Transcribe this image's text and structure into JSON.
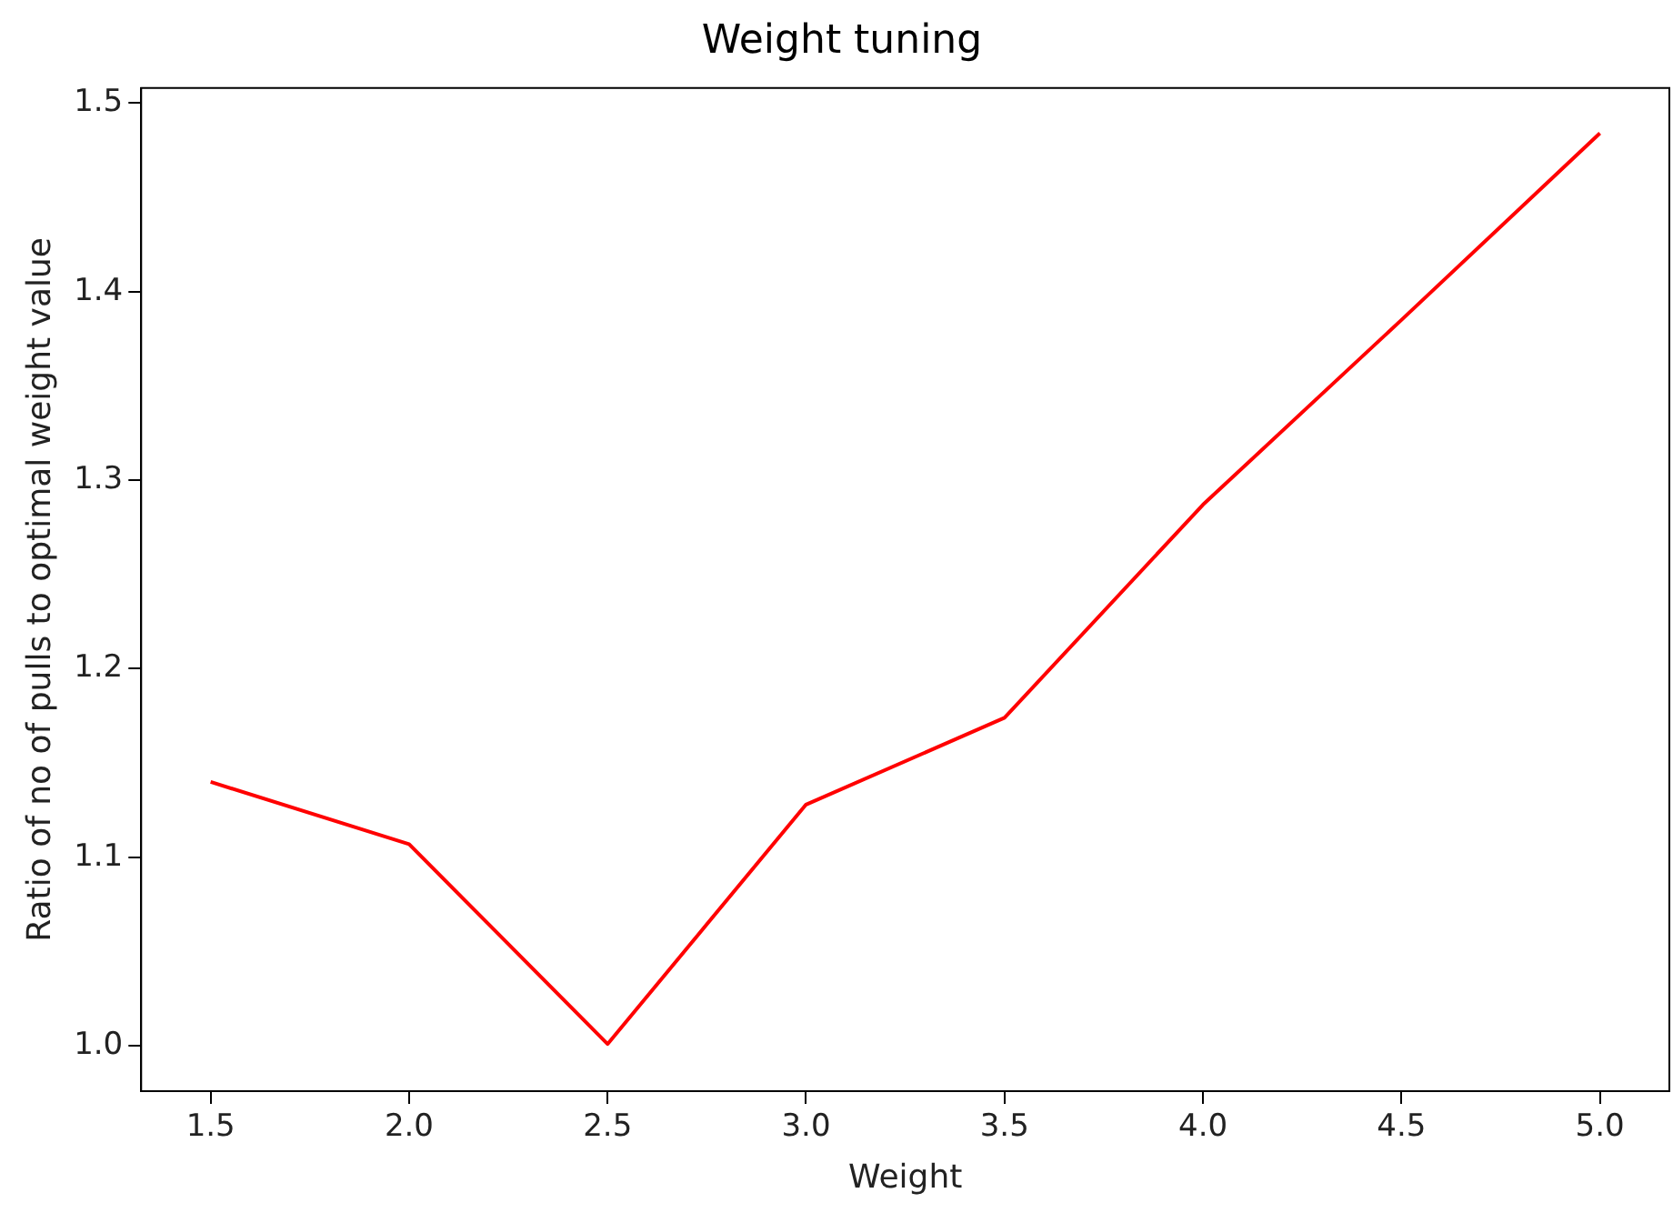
{
  "chart_data": {
    "type": "line",
    "title": "Weight tuning",
    "xlabel": "Weight",
    "ylabel": "Ratio of no of pulls to optimal weight value",
    "x": [
      1.5,
      2.0,
      2.5,
      3.0,
      3.5,
      4.0,
      4.5,
      5.0
    ],
    "series": [
      {
        "color": "#ff0000",
        "values": [
          1.14,
          1.107,
          1.001,
          1.128,
          1.174,
          1.287,
          1.385,
          1.484
        ]
      }
    ],
    "xlim": [
      1.325,
      5.175
    ],
    "ylim": [
      0.976,
      1.508
    ],
    "xticks": [
      {
        "value": 1.5,
        "label": "1.5"
      },
      {
        "value": 2.0,
        "label": "2.0"
      },
      {
        "value": 2.5,
        "label": "2.5"
      },
      {
        "value": 3.0,
        "label": "3.0"
      },
      {
        "value": 3.5,
        "label": "3.5"
      },
      {
        "value": 4.0,
        "label": "4.0"
      },
      {
        "value": 4.5,
        "label": "4.5"
      },
      {
        "value": 5.0,
        "label": "5.0"
      }
    ],
    "yticks": [
      {
        "value": 1.0,
        "label": "1.0"
      },
      {
        "value": 1.1,
        "label": "1.1"
      },
      {
        "value": 1.2,
        "label": "1.2"
      },
      {
        "value": 1.3,
        "label": "1.3"
      },
      {
        "value": 1.4,
        "label": "1.4"
      },
      {
        "value": 1.5,
        "label": "1.5"
      }
    ],
    "grid": false,
    "legend": false,
    "marker": "none",
    "line_style": "solid"
  }
}
